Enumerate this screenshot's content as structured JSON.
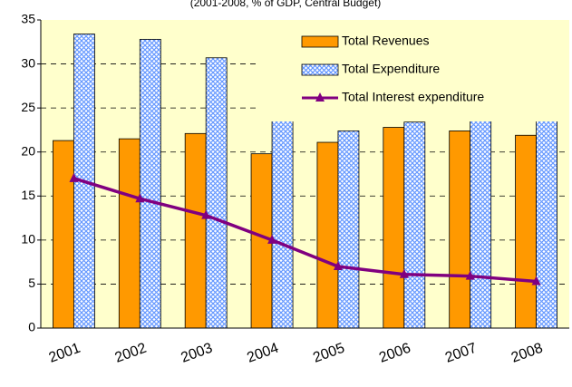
{
  "chart_data": {
    "type": "bar",
    "subtitle": "(2001-2008, % of GDP, Central Budget)",
    "categories": [
      "2001",
      "2002",
      "2003",
      "2004",
      "2005",
      "2006",
      "2007",
      "2008"
    ],
    "series": [
      {
        "name": "Total Revenues",
        "type": "bar",
        "color": "#FF9900",
        "values": [
          21.3,
          21.5,
          22.1,
          19.8,
          21.1,
          22.8,
          22.4,
          21.9
        ]
      },
      {
        "name": "Total Expenditure",
        "type": "bar",
        "color": "#99CCFF",
        "values": [
          33.4,
          32.8,
          30.7,
          25.1,
          22.4,
          23.4,
          24.2,
          23.8
        ]
      },
      {
        "name": "Total Interest expenditure",
        "type": "line",
        "color": "#800080",
        "values": [
          17.0,
          14.7,
          12.8,
          10.0,
          7.0,
          6.1,
          5.9,
          5.3
        ]
      }
    ],
    "ylim": [
      0,
      35
    ],
    "yticks": [
      0,
      5,
      10,
      15,
      20,
      25,
      30,
      35
    ],
    "grid": true,
    "legend": "top-right"
  }
}
